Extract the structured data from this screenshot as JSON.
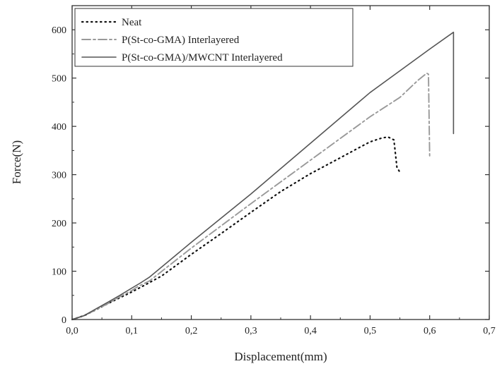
{
  "chart_data": {
    "type": "line",
    "title": "",
    "xlabel": "Displacement(mm)",
    "ylabel": "Force(N)",
    "xlim": [
      0,
      0.7
    ],
    "ylim": [
      0,
      650
    ],
    "xticks": [
      0,
      0.1,
      0.2,
      0.3,
      0.4,
      0.5,
      0.6,
      0.7
    ],
    "xtick_labels": [
      "0,0",
      "0,1",
      "0,2",
      "0,3",
      "0,4",
      "0,5",
      "0,6",
      "0,7"
    ],
    "yticks": [
      0,
      100,
      200,
      300,
      400,
      500,
      600
    ],
    "ytick_labels": [
      "0",
      "100",
      "200",
      "300",
      "400",
      "500",
      "600"
    ],
    "grid": false,
    "legend_position": "top-left",
    "series": [
      {
        "name": "Neat",
        "color": "#111111",
        "style": "dotted",
        "x": [
          0,
          0.02,
          0.04,
          0.06,
          0.08,
          0.1,
          0.12,
          0.15,
          0.2,
          0.25,
          0.3,
          0.35,
          0.4,
          0.45,
          0.48,
          0.5,
          0.52,
          0.53,
          0.54,
          0.545,
          0.55
        ],
        "y": [
          0,
          8,
          20,
          33,
          45,
          57,
          70,
          90,
          135,
          178,
          222,
          265,
          302,
          335,
          355,
          368,
          376,
          378,
          372,
          315,
          305
        ]
      },
      {
        "name": "P(St-co-GMA) Interlayered",
        "color": "#999999",
        "style": "dashdot",
        "x": [
          0,
          0.02,
          0.04,
          0.06,
          0.08,
          0.1,
          0.11,
          0.13,
          0.2,
          0.3,
          0.4,
          0.5,
          0.55,
          0.58,
          0.595,
          0.598,
          0.6
        ],
        "y": [
          0,
          8,
          20,
          33,
          47,
          60,
          68,
          80,
          148,
          240,
          330,
          420,
          460,
          495,
          510,
          508,
          337
        ]
      },
      {
        "name": "P(St-co-GMA)/MWCNT Interlayered",
        "color": "#555555",
        "style": "solid",
        "x": [
          0,
          0.02,
          0.04,
          0.06,
          0.08,
          0.1,
          0.115,
          0.13,
          0.2,
          0.3,
          0.4,
          0.5,
          0.6,
          0.64,
          0.64
        ],
        "y": [
          0,
          8,
          22,
          36,
          50,
          65,
          76,
          88,
          160,
          260,
          365,
          470,
          560,
          595,
          385
        ]
      }
    ]
  }
}
